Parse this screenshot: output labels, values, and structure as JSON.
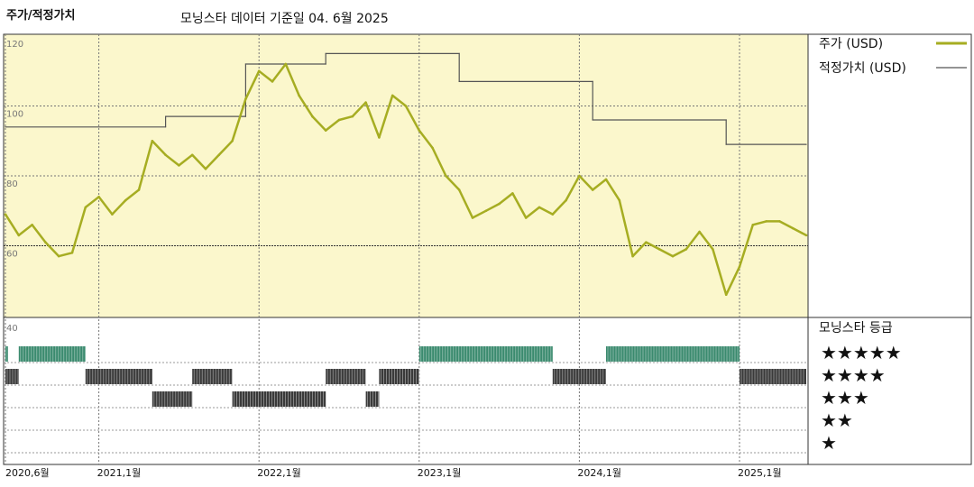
{
  "header": {
    "title": "주가/적정가치",
    "subtitle": "모닝스타 데이터 기준일 04. 6월 2025"
  },
  "colors": {
    "panel_bg": "#fbf7cc",
    "price_line": "#a6ad22",
    "fair_value_line": "#555555",
    "rating_high": "#3a8a6e",
    "rating_low": "#3a3a3a"
  },
  "chart_data": [
    {
      "type": "line",
      "ylim": [
        40,
        120
      ],
      "yticks": [
        "120",
        "100",
        "80",
        "60",
        "40"
      ],
      "reference_line": 60,
      "xticks": [
        "2020,6월",
        "2021,1월",
        "2022,1월",
        "2023,1월",
        "2024,1월",
        "2025,1월"
      ],
      "legend": [
        "주가 (USD)",
        "적정가치 (USD)"
      ],
      "series": [
        {
          "name": "주가 (USD)",
          "points": [
            [
              "2020-06",
              69
            ],
            [
              "2020-07",
              63
            ],
            [
              "2020-08",
              66
            ],
            [
              "2020-09",
              61
            ],
            [
              "2020-10",
              57
            ],
            [
              "2020-11",
              58
            ],
            [
              "2020-12",
              71
            ],
            [
              "2021-01",
              74
            ],
            [
              "2021-02",
              69
            ],
            [
              "2021-03",
              73
            ],
            [
              "2021-04",
              76
            ],
            [
              "2021-05",
              90
            ],
            [
              "2021-06",
              86
            ],
            [
              "2021-07",
              83
            ],
            [
              "2021-08",
              86
            ],
            [
              "2021-09",
              82
            ],
            [
              "2021-10",
              86
            ],
            [
              "2021-11",
              90
            ],
            [
              "2021-12",
              102
            ],
            [
              "2022-01",
              110
            ],
            [
              "2022-02",
              107
            ],
            [
              "2022-03",
              112
            ],
            [
              "2022-04",
              103
            ],
            [
              "2022-05",
              97
            ],
            [
              "2022-06",
              93
            ],
            [
              "2022-07",
              96
            ],
            [
              "2022-08",
              97
            ],
            [
              "2022-09",
              101
            ],
            [
              "2022-10",
              91
            ],
            [
              "2022-11",
              103
            ],
            [
              "2022-12",
              100
            ],
            [
              "2023-01",
              93
            ],
            [
              "2023-02",
              88
            ],
            [
              "2023-03",
              80
            ],
            [
              "2023-04",
              76
            ],
            [
              "2023-05",
              68
            ],
            [
              "2023-06",
              70
            ],
            [
              "2023-07",
              72
            ],
            [
              "2023-08",
              75
            ],
            [
              "2023-09",
              68
            ],
            [
              "2023-10",
              71
            ],
            [
              "2023-11",
              69
            ],
            [
              "2023-12",
              73
            ],
            [
              "2024-01",
              80
            ],
            [
              "2024-02",
              76
            ],
            [
              "2024-03",
              79
            ],
            [
              "2024-04",
              73
            ],
            [
              "2024-05",
              57
            ],
            [
              "2024-06",
              61
            ],
            [
              "2024-07",
              59
            ],
            [
              "2024-08",
              57
            ],
            [
              "2024-09",
              59
            ],
            [
              "2024-10",
              64
            ],
            [
              "2024-11",
              59
            ],
            [
              "2024-12",
              46
            ],
            [
              "2025-01",
              54
            ],
            [
              "2025-02",
              66
            ],
            [
              "2025-03",
              67
            ],
            [
              "2025-04",
              67
            ],
            [
              "2025-05",
              65
            ],
            [
              "2025-06",
              63
            ]
          ]
        },
        {
          "name": "적정가치 (USD)",
          "points": [
            [
              "2020-06",
              94
            ],
            [
              "2021-06",
              94
            ],
            [
              "2021-06",
              97
            ],
            [
              "2021-12",
              97
            ],
            [
              "2021-12",
              112
            ],
            [
              "2022-06",
              112
            ],
            [
              "2022-06",
              115
            ],
            [
              "2023-04",
              115
            ],
            [
              "2023-04",
              107
            ],
            [
              "2024-02",
              107
            ],
            [
              "2024-02",
              96
            ],
            [
              "2024-12",
              96
            ],
            [
              "2024-12",
              89
            ],
            [
              "2025-06",
              89
            ]
          ]
        }
      ]
    },
    {
      "type": "heatmap",
      "title": "모닝스타 등급",
      "rating_labels": [
        "★★★★★",
        "★★★★",
        "★★★",
        "★★",
        "★"
      ],
      "periods": [
        {
          "start": "2020-06",
          "end": "2020-06",
          "stars": 5
        },
        {
          "start": "2020-06",
          "end": "2020-07",
          "stars": 4
        },
        {
          "start": "2020-07",
          "end": "2020-12",
          "stars": 5
        },
        {
          "start": "2020-12",
          "end": "2021-05",
          "stars": 4
        },
        {
          "start": "2021-05",
          "end": "2021-08",
          "stars": 3
        },
        {
          "start": "2021-08",
          "end": "2021-11",
          "stars": 4
        },
        {
          "start": "2021-11",
          "end": "2022-06",
          "stars": 3
        },
        {
          "start": "2022-06",
          "end": "2022-09",
          "stars": 4
        },
        {
          "start": "2022-09",
          "end": "2022-10",
          "stars": 3
        },
        {
          "start": "2022-10",
          "end": "2023-01",
          "stars": 4
        },
        {
          "start": "2023-01",
          "end": "2023-11",
          "stars": 5
        },
        {
          "start": "2023-11",
          "end": "2024-03",
          "stars": 4
        },
        {
          "start": "2024-03",
          "end": "2025-01",
          "stars": 5
        },
        {
          "start": "2025-01",
          "end": "2025-06",
          "stars": 4
        }
      ]
    }
  ]
}
